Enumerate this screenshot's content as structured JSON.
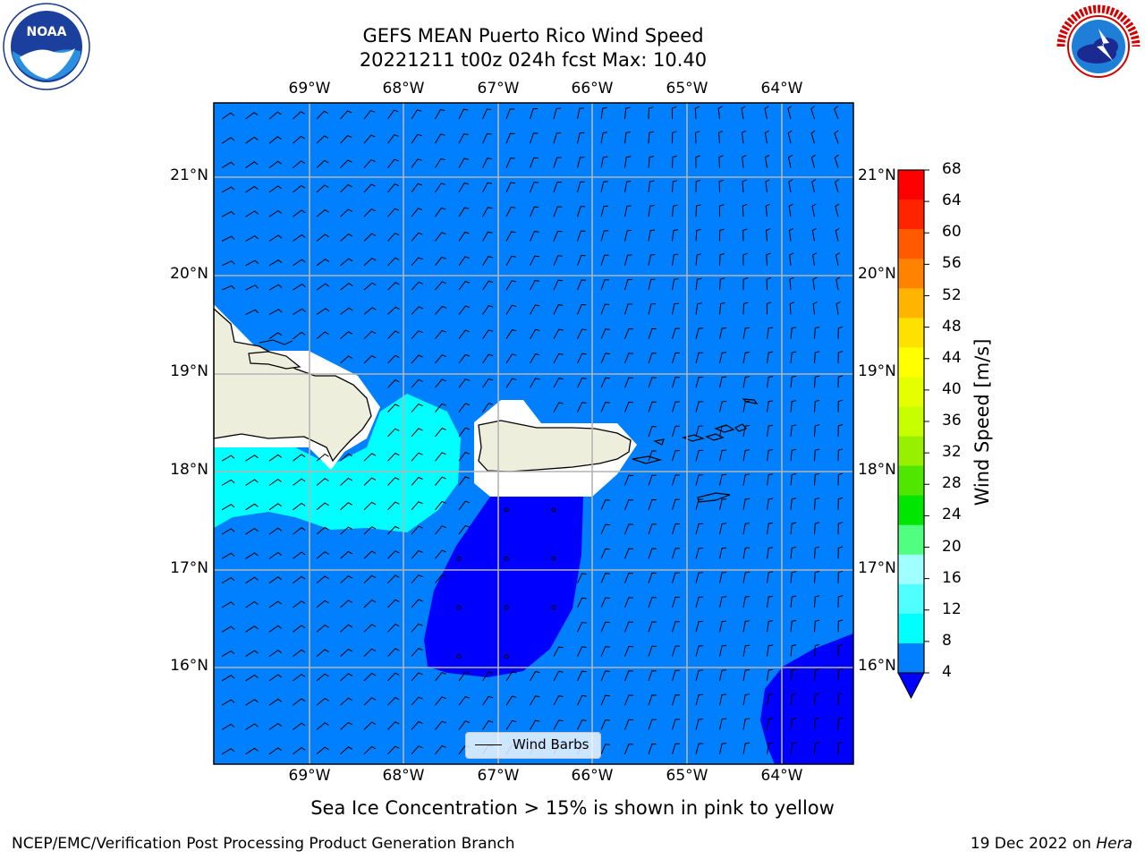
{
  "title_line1": "GEFS MEAN Puerto Rico Wind Speed",
  "title_line2": "20221211 t00z 024h fcst   Max: 10.40",
  "logos": {
    "left": "noaa-logo",
    "right": "national-weather-service-logo",
    "left_text": "NOAA",
    "right_text": "NATIONAL WEATHER SERVICE"
  },
  "map": {
    "lon_labels": [
      "69°W",
      "68°W",
      "67°W",
      "66°W",
      "65°W",
      "64°W"
    ],
    "lat_labels": [
      "21°N",
      "20°N",
      "19°N",
      "18°N",
      "17°N",
      "16°N"
    ],
    "ocean_color": "#0080ff",
    "land_color": "#eeeedd",
    "legend_label": "Wind Barbs",
    "fill_colors": {
      "4-8": "#0080ff",
      "8-12": "#00ffff",
      "below-4": "#0000ff"
    }
  },
  "colorbar": {
    "title": "Wind Speed [m/s]",
    "ticks": [
      "68",
      "64",
      "60",
      "56",
      "52",
      "48",
      "44",
      "40",
      "36",
      "32",
      "28",
      "24",
      "20",
      "16",
      "12",
      "8",
      "4"
    ],
    "colors": [
      "#ff0000",
      "#ff2400",
      "#ff5a00",
      "#ff8200",
      "#ffb400",
      "#ffe100",
      "#ffff00",
      "#e6ff00",
      "#c8ff00",
      "#96f000",
      "#50e600",
      "#00e600",
      "#50ff80",
      "#a0ffff",
      "#50ffff",
      "#00ffff",
      "#0080ff"
    ],
    "under_color": "#0000ff"
  },
  "note": "Sea Ice Concentration > 15% is shown in pink to yellow",
  "footer_left": "NCEP/EMC/Verification Post Processing Product Generation Branch",
  "footer_right_date": "19 Dec 2022 on ",
  "footer_right_machine": "Hera"
}
